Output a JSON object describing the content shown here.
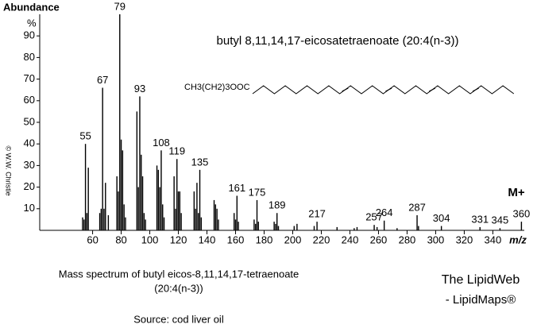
{
  "chart_data": {
    "type": "spectrum",
    "title": "butyl 8,11,14,17-eicosatetraenoate  (20:4(n-3))",
    "formula": "CH3(CH2)3OOC",
    "y_label": "Abundance",
    "y_unit": "%",
    "x_label": "m/z",
    "annotation": "M+",
    "copyright": "© W.W. Christie",
    "color": "#000000",
    "title_color": "#1a1aff",
    "grid": false,
    "x": [
      53,
      54,
      55,
      56,
      57,
      65,
      66,
      67,
      68,
      69,
      71,
      77,
      78,
      79,
      80,
      81,
      82,
      83,
      91,
      92,
      93,
      94,
      95,
      96,
      97,
      105,
      106,
      107,
      108,
      109,
      110,
      117,
      118,
      119,
      120,
      121,
      122,
      131,
      132,
      133,
      134,
      135,
      136,
      145,
      146,
      147,
      148,
      159,
      160,
      161,
      162,
      173,
      174,
      175,
      176,
      187,
      188,
      189,
      190,
      201,
      203,
      215,
      217,
      231,
      243,
      245,
      257,
      259,
      264,
      273,
      287,
      288,
      304,
      331,
      345,
      360
    ],
    "values": [
      6,
      5,
      40,
      8,
      29,
      8,
      10,
      66,
      10,
      22,
      7,
      25,
      18,
      100,
      42,
      37,
      12,
      6,
      55,
      20,
      62,
      35,
      25,
      8,
      5,
      30,
      28,
      20,
      37,
      12,
      6,
      25,
      10,
      33,
      18,
      18,
      8,
      18,
      10,
      22,
      8,
      28,
      6,
      14,
      12,
      10,
      5,
      8,
      5,
      16,
      4,
      5,
      3,
      14,
      4,
      4,
      3,
      8,
      2,
      2,
      3,
      2,
      4,
      1.5,
      1,
      1.5,
      2.5,
      1.5,
      4.5,
      1,
      7,
      2,
      2,
      1.5,
      1,
      4
    ],
    "peak_labels": [
      55,
      67,
      79,
      93,
      108,
      119,
      135,
      161,
      175,
      189,
      217,
      257,
      264,
      287,
      304,
      331,
      345,
      360
    ],
    "xlim": [
      23,
      362
    ],
    "ylim": [
      0,
      100
    ],
    "xticks": [
      60,
      80,
      100,
      120,
      140,
      160,
      180,
      200,
      220,
      240,
      260,
      280,
      300,
      320,
      340
    ],
    "yticks": [
      10,
      20,
      30,
      40,
      50,
      60,
      70,
      80,
      90
    ]
  },
  "footer": {
    "caption": [
      "Mass spectrum of butyl eicos-8,11,14,17-tetraenoate",
      "(20:4(n-3))"
    ],
    "source": "Source: cod liver oil",
    "credit": [
      "The LipidWeb",
      "- LipidMaps®"
    ]
  }
}
